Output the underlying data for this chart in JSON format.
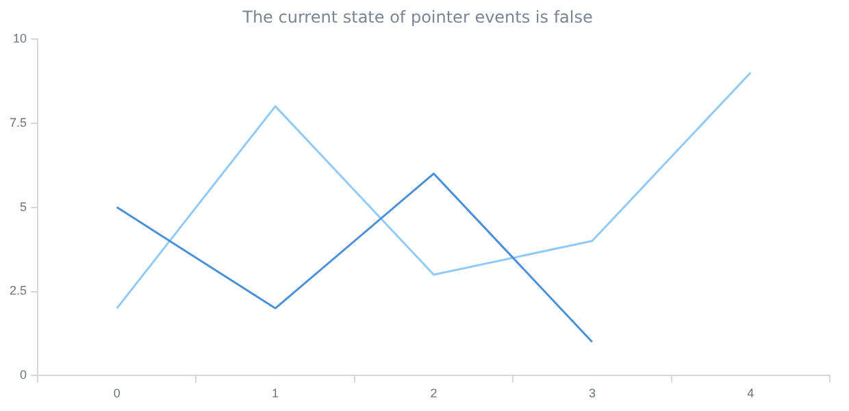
{
  "chart_data": {
    "type": "line",
    "title": "The current state of pointer events is false",
    "categories": [
      "0",
      "1",
      "2",
      "3",
      "4"
    ],
    "series": [
      {
        "color": "#4a90d9",
        "values": [
          5,
          2,
          6,
          1,
          null
        ]
      },
      {
        "color": "#90caf9",
        "values": [
          2,
          8,
          3,
          4,
          9
        ]
      }
    ],
    "ylim": [
      0,
      10
    ],
    "yticks": [
      0,
      {
        "value": 2.5,
        "label": "2.5"
      },
      5,
      {
        "value": 7.5,
        "label": "7.5"
      },
      10
    ],
    "grid": false,
    "legend": false,
    "marker": "none",
    "line_style": "solid"
  }
}
